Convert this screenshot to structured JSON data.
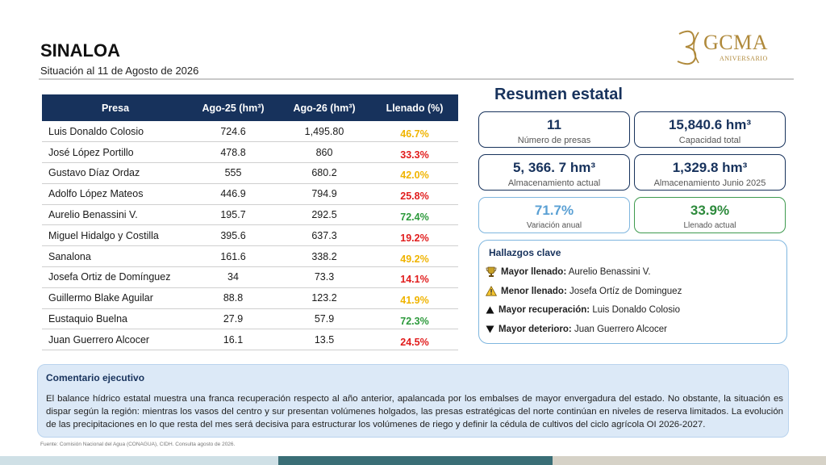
{
  "header": {
    "title": "SINALOA",
    "subtitle": "Situación al 11 de Agosto de 2026"
  },
  "logo": {
    "text": "GCMA",
    "sub": "ANIVERSARIO",
    "number": "30",
    "color": "#b08a3c"
  },
  "table": {
    "headers": [
      "Presa",
      "Ago-25 (hm³)",
      "Ago-26 (hm³)",
      "Llenado (%)"
    ],
    "rows": [
      {
        "name": "Luis Donaldo Colosio",
        "ago25": "724.6",
        "ago26": "1,495.80",
        "llenado": "46.7%",
        "status": "yellow"
      },
      {
        "name": "José López Portillo",
        "ago25": "478.8",
        "ago26": "860",
        "llenado": "33.3%",
        "status": "red"
      },
      {
        "name": "Gustavo Díaz Ordaz",
        "ago25": "555",
        "ago26": "680.2",
        "llenado": "42.0%",
        "status": "yellow"
      },
      {
        "name": "Adolfo López Mateos",
        "ago25": "446.9",
        "ago26": "794.9",
        "llenado": "25.8%",
        "status": "red"
      },
      {
        "name": "Aurelio Benassini V.",
        "ago25": "195.7",
        "ago26": "292.5",
        "llenado": "72.4%",
        "status": "green"
      },
      {
        "name": "Miguel Hidalgo y Costilla",
        "ago25": "395.6",
        "ago26": "637.3",
        "llenado": "19.2%",
        "status": "red"
      },
      {
        "name": "Sanalona",
        "ago25": "161.6",
        "ago26": "338.2",
        "llenado": "49.2%",
        "status": "yellow"
      },
      {
        "name": "Josefa Ortiz de Domínguez",
        "ago25": "34",
        "ago26": "73.3",
        "llenado": "14.1%",
        "status": "red"
      },
      {
        "name": "Guillermo Blake Aguilar",
        "ago25": "88.8",
        "ago26": "123.2",
        "llenado": "41.9%",
        "status": "yellow"
      },
      {
        "name": "Eustaquio Buelna",
        "ago25": "27.9",
        "ago26": "57.9",
        "llenado": "72.3%",
        "status": "green"
      },
      {
        "name": "Juan Guerrero Alcocer",
        "ago25": "16.1",
        "ago26": "13.5",
        "llenado": "24.5%",
        "status": "red"
      }
    ]
  },
  "resumen": {
    "title": "Resumen estatal",
    "cards": {
      "num_presas": {
        "value": "11",
        "label": "Número de presas"
      },
      "capacidad": {
        "value": "15,840.6 hm³",
        "label": "Capacidad total"
      },
      "almacenamiento_actual": {
        "value": "5, 366. 7 hm³",
        "label": "Almacenamiento actual"
      },
      "almacenamiento_junio": {
        "value": "1,329.8 hm³",
        "label": "Almacenamiento Junio 2025"
      },
      "variacion": {
        "value": "71.7%",
        "label": "Variación anual"
      },
      "llenado": {
        "value": "33.9%",
        "label": "Llenado actual"
      }
    }
  },
  "hallazgos": {
    "title": "Hallazgos clave",
    "items": [
      {
        "label": "Mayor llenado:",
        "value": " Aurelio Benassini V.",
        "icon": "trophy-icon"
      },
      {
        "label": "Menor llenado:",
        "value": " Josefa Ortíz de Dominguez",
        "icon": "warning-icon"
      },
      {
        "label": "Mayor recuperación:",
        "value": " Luis Donaldo Colosio",
        "icon": "triangle-up-icon"
      },
      {
        "label": "Mayor deterioro:",
        "value": " Juan Guerrero Alcocer",
        "icon": "triangle-down-icon"
      }
    ]
  },
  "comentario": {
    "title": "Comentario ejecutivo",
    "body": "El balance hídrico estatal muestra una franca recuperación respecto al año anterior, apalancada por los embalses de mayor envergadura del estado. No obstante, la situación es dispar según la región: mientras los vasos del centro y sur presentan volúmenes holgados, las presas estratégicas del norte continúan en niveles de reserva limitados. La evolución de las precipitaciones en lo que resta del mes será decisiva para estructurar los volúmenes de riego y definir la cédula de cultivos del ciclo agrícola OI 2026-2027."
  },
  "source": "Fuente: Comisión Nacional del Agua (CONAGUA), CIDH. Consulta agosto de 2026.",
  "colors": {
    "navy": "#17325c",
    "yellow": "#f0b400",
    "red": "#e11d1d",
    "green": "#2d9a3c",
    "light_blue": "#5aa0d4"
  }
}
